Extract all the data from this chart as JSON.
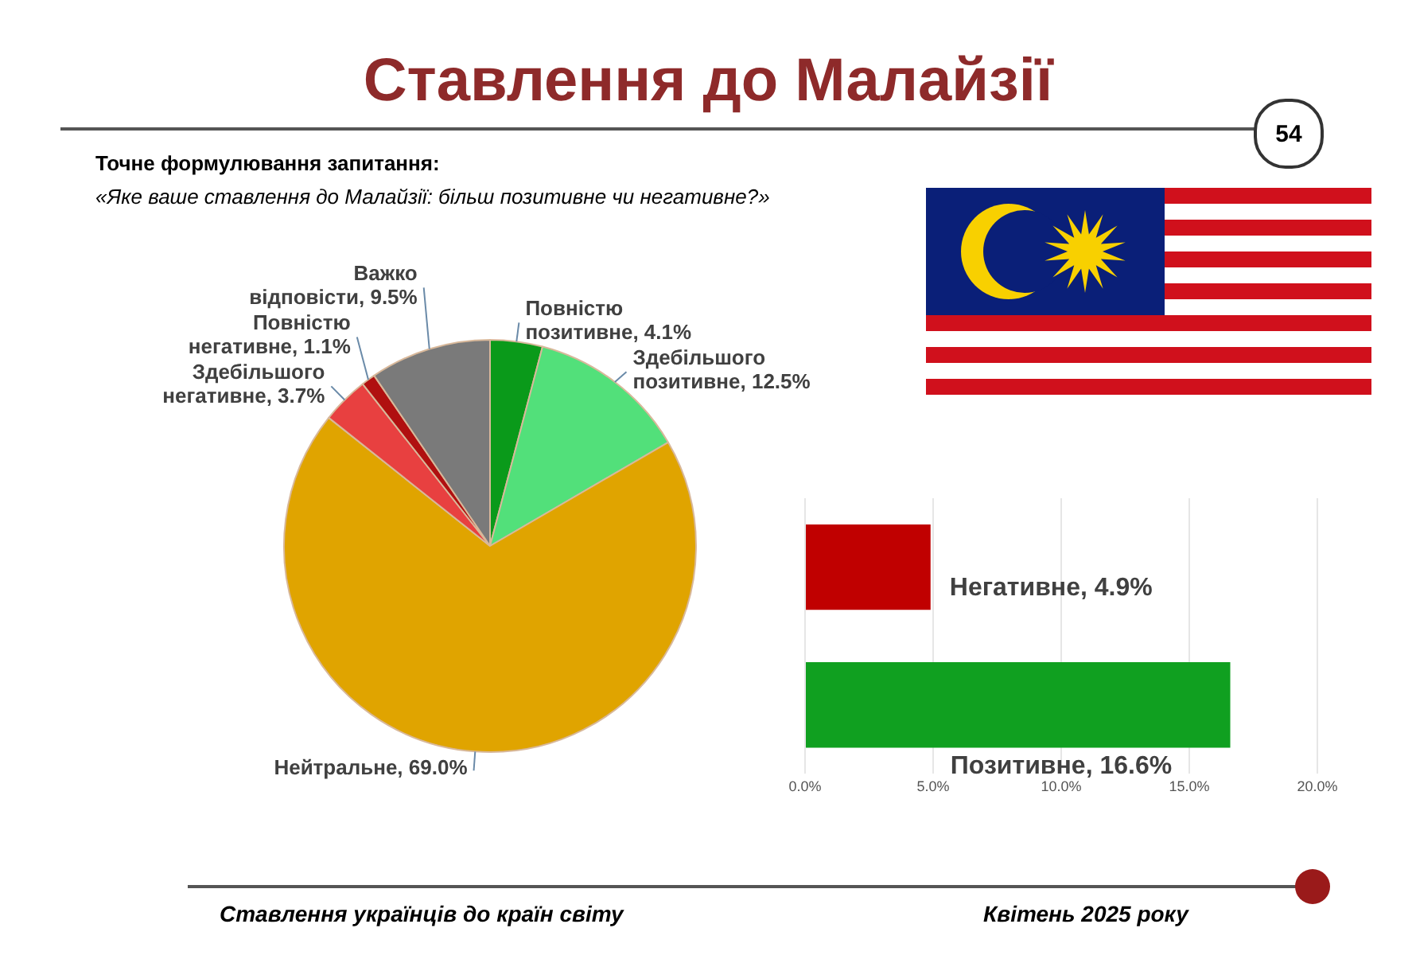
{
  "chart_data": [
    {
      "type": "pie",
      "title": "Ставлення до Малайзії",
      "subtitle": "Точне формулювання запитання:",
      "annotations": [
        "«Яке ваше ставлення до Малайзії: більш позитивне чи негативне?»",
        "54",
        "Ставлення українців до країн світу",
        "Квітень 2025 року"
      ],
      "categories": [
        "Повністю позитивне",
        "Здебільшого позитивне",
        "Нейтральне",
        "Здебільшого негативне",
        "Повністю негативне",
        "Важко відповісти"
      ],
      "values": [
        4.1,
        12.5,
        69.0,
        3.7,
        1.1,
        9.5
      ],
      "value_labels": [
        "4.1%",
        "12.5%",
        "69.0%",
        "3.7%",
        "1.1%",
        "9.5%"
      ],
      "colors": [
        "#0a9a1a",
        "#52e07a",
        "#e0a400",
        "#e84040",
        "#b01010",
        "#7a7a7a"
      ]
    },
    {
      "type": "bar",
      "orientation": "horizontal",
      "categories": [
        null,
        null
      ],
      "values": [
        4.9,
        16.6
      ],
      "colors": [
        "#c00000",
        "#10a020"
      ],
      "value_labels": [
        "Негативне, 4.9%",
        "Позитивне, 16.6%"
      ],
      "xlim": [
        0,
        20
      ],
      "xticks": [
        {
          "value": 0,
          "label": "0.0%"
        },
        {
          "value": 5,
          "label": "5.0%"
        },
        {
          "value": 10,
          "label": "10.0%"
        },
        {
          "value": 15,
          "label": "15.0%"
        },
        {
          "value": 20,
          "label": "20.0%"
        }
      ],
      "grid": "x",
      "tick_labels": "x"
    }
  ]
}
